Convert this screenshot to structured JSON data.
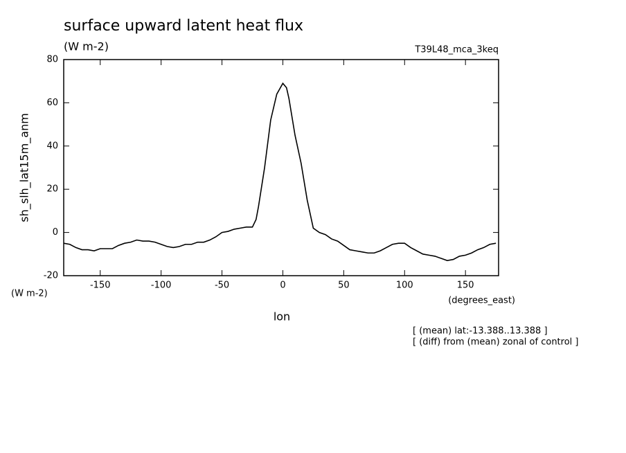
{
  "chart_data": {
    "type": "line",
    "title": "surface upward latent heat flux",
    "subtitle": "(W m-2)",
    "label": "T39L48_mca_3keq",
    "y_label": "sh_slh_lat15m_anm",
    "y_units": "(W m-2)",
    "x_label": "lon",
    "x_units": "(degrees_east)",
    "notes": [
      "[ (mean) lat:-13.388..13.388 ]",
      "[ (diff) from (mean) zonal of control ]"
    ],
    "x": [
      -180,
      -175,
      -170,
      -165,
      -160,
      -155,
      -150,
      -145,
      -140,
      -135,
      -130,
      -125,
      -120,
      -115,
      -110,
      -105,
      -100,
      -95,
      -90,
      -85,
      -80,
      -75,
      -70,
      -65,
      -60,
      -55,
      -50,
      -45,
      -40,
      -35,
      -30,
      -25,
      -22,
      -20,
      -15,
      -10,
      -5,
      0,
      3,
      5,
      10,
      15,
      20,
      25,
      30,
      35,
      40,
      45,
      50,
      55,
      60,
      65,
      70,
      75,
      80,
      85,
      90,
      95,
      100,
      105,
      110,
      115,
      120,
      125,
      130,
      135,
      140,
      145,
      150,
      155,
      160,
      165,
      170,
      175
    ],
    "series": [
      {
        "name": "sh_slh_lat15m_anm",
        "color": "#000000",
        "values": [
          -5,
          -5.5,
          -7,
          -8,
          -8,
          -8.5,
          -7.5,
          -7.5,
          -7.5,
          -6,
          -5,
          -4.5,
          -3.5,
          -4,
          -4,
          -4.5,
          -5.5,
          -6.5,
          -7,
          -6.5,
          -5.5,
          -5.5,
          -4.5,
          -4.5,
          -3.5,
          -2,
          0,
          0.5,
          1.5,
          2,
          2.5,
          2.5,
          6,
          12,
          30,
          52,
          64,
          69,
          67,
          62,
          45,
          32,
          15,
          2,
          0,
          -1,
          -3,
          -4,
          -6,
          -8,
          -8.5,
          -9,
          -9.5,
          -9.5,
          -8.5,
          -7,
          -5.5,
          -5,
          -5,
          -7,
          -8.5,
          -10,
          -10.5,
          -11,
          -12,
          -13,
          -12.5,
          -11,
          -10.5,
          -9.5,
          -8,
          -7,
          -5.5,
          -5
        ]
      }
    ],
    "xlim": [
      -180,
      177.2
    ],
    "ylim": [
      -20,
      80
    ],
    "xticks": [
      -150,
      -100,
      -50,
      0,
      50,
      100,
      150
    ],
    "yticks": [
      -20,
      0,
      20,
      40,
      60,
      80
    ]
  }
}
